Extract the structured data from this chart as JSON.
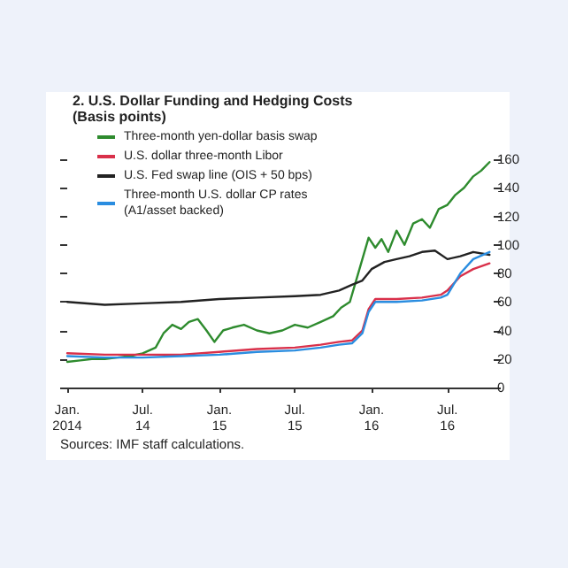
{
  "chart_data": {
    "type": "line",
    "title": "2. U.S. Dollar Funding and Hedging Costs",
    "subtitle": "(Basis points)",
    "annotations": [
      "Sources: IMF staff calculations."
    ],
    "xlim": [
      "2014-01-01",
      "2016-10-20"
    ],
    "xticks": [
      {
        "value": "2014-01-01",
        "label": "Jan.\n2014"
      },
      {
        "value": "2014-07-01",
        "label": "Jul.\n14"
      },
      {
        "value": "2015-01-01",
        "label": "Jan.\n15"
      },
      {
        "value": "2015-07-01",
        "label": "Jul.\n15"
      },
      {
        "value": "2016-01-01",
        "label": "Jan.\n16"
      },
      {
        "value": "2016-07-01",
        "label": "Jul.\n16"
      }
    ],
    "ylim": [
      0,
      160
    ],
    "yticks": [
      0,
      20,
      40,
      60,
      80,
      100,
      120,
      140,
      160
    ],
    "grid": false,
    "legend": "top left",
    "marker": "none",
    "line_style": "solid",
    "series": [
      {
        "name": "Three-month yen-dollar basis swap",
        "color": "#2e8b2e",
        "x": [
          "2014-01-01",
          "2014-02-01",
          "2014-03-01",
          "2014-04-01",
          "2014-05-01",
          "2014-06-01",
          "2014-07-01",
          "2014-08-01",
          "2014-08-20",
          "2014-09-10",
          "2014-10-01",
          "2014-10-20",
          "2014-11-10",
          "2014-12-01",
          "2014-12-20",
          "2015-01-10",
          "2015-02-01",
          "2015-03-01",
          "2015-04-01",
          "2015-05-01",
          "2015-06-01",
          "2015-07-01",
          "2015-08-01",
          "2015-09-01",
          "2015-10-01",
          "2015-10-20",
          "2015-11-10",
          "2015-11-25",
          "2015-12-10",
          "2015-12-25",
          "2016-01-10",
          "2016-01-25",
          "2016-02-10",
          "2016-03-01",
          "2016-03-20",
          "2016-04-10",
          "2016-05-01",
          "2016-05-20",
          "2016-06-10",
          "2016-07-01",
          "2016-07-20",
          "2016-08-10",
          "2016-09-01",
          "2016-09-20",
          "2016-10-10"
        ],
        "values": [
          18,
          19,
          20,
          20,
          21,
          22,
          24,
          28,
          38,
          44,
          41,
          46,
          48,
          40,
          32,
          40,
          42,
          44,
          40,
          38,
          40,
          44,
          42,
          46,
          50,
          56,
          60,
          75,
          90,
          105,
          98,
          104,
          95,
          110,
          100,
          115,
          118,
          112,
          125,
          128,
          135,
          140,
          148,
          152,
          158
        ]
      },
      {
        "name": "U.S. dollar three-month Libor",
        "color": "#d9304a",
        "x": [
          "2014-01-01",
          "2014-04-01",
          "2014-07-01",
          "2014-10-01",
          "2015-01-01",
          "2015-04-01",
          "2015-07-01",
          "2015-09-01",
          "2015-10-15",
          "2015-11-15",
          "2015-12-10",
          "2015-12-25",
          "2016-01-10",
          "2016-03-01",
          "2016-05-01",
          "2016-06-15",
          "2016-07-01",
          "2016-08-01",
          "2016-09-01",
          "2016-10-10"
        ],
        "values": [
          24,
          23,
          23,
          23,
          25,
          27,
          28,
          30,
          32,
          33,
          40,
          55,
          62,
          62,
          63,
          65,
          68,
          78,
          83,
          87
        ]
      },
      {
        "name": "U.S. Fed swap line (OIS + 50 bps)",
        "color": "#222222",
        "x": [
          "2014-01-01",
          "2014-04-01",
          "2014-07-01",
          "2014-10-01",
          "2015-01-01",
          "2015-04-01",
          "2015-07-01",
          "2015-09-01",
          "2015-10-15",
          "2015-11-15",
          "2015-12-10",
          "2016-01-01",
          "2016-02-01",
          "2016-03-01",
          "2016-04-01",
          "2016-05-01",
          "2016-06-01",
          "2016-07-01",
          "2016-08-01",
          "2016-09-01",
          "2016-10-10"
        ],
        "values": [
          60,
          58,
          59,
          60,
          62,
          63,
          64,
          65,
          68,
          72,
          75,
          83,
          88,
          90,
          92,
          95,
          96,
          90,
          92,
          95,
          93
        ]
      },
      {
        "name": "Three-month U.S. dollar CP rates\n(A1/asset backed)",
        "color": "#2a8de0",
        "x": [
          "2014-01-01",
          "2014-04-01",
          "2014-07-01",
          "2014-10-01",
          "2015-01-01",
          "2015-04-01",
          "2015-07-01",
          "2015-09-01",
          "2015-10-15",
          "2015-11-15",
          "2015-12-10",
          "2015-12-25",
          "2016-01-10",
          "2016-03-01",
          "2016-05-01",
          "2016-06-15",
          "2016-07-01",
          "2016-08-01",
          "2016-09-01",
          "2016-10-10"
        ],
        "values": [
          22,
          21,
          21,
          22,
          23,
          25,
          26,
          28,
          30,
          31,
          38,
          53,
          60,
          60,
          61,
          63,
          65,
          80,
          90,
          95
        ]
      }
    ]
  }
}
